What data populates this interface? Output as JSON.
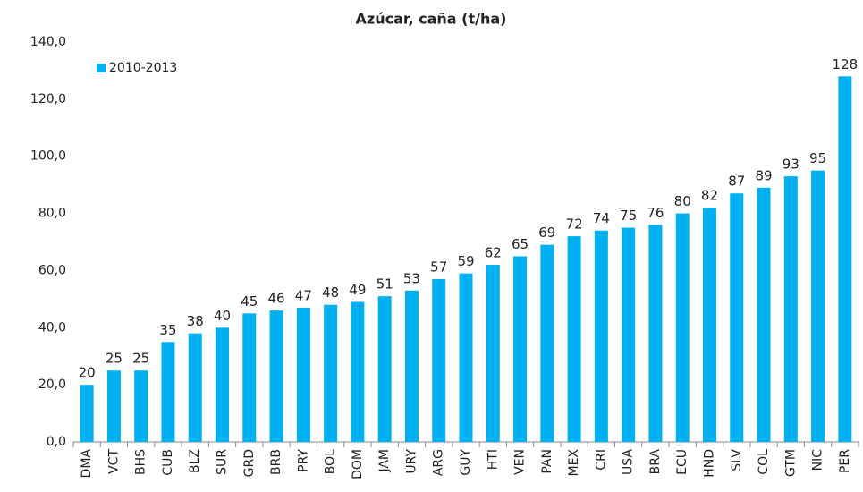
{
  "chart_data": {
    "type": "bar",
    "title": "Azúcar, caña (t/ha)",
    "categories": [
      "DMA",
      "VCT",
      "BHS",
      "CUB",
      "BLZ",
      "SUR",
      "GRD",
      "BRB",
      "PRY",
      "BOL",
      "DOM",
      "JAM",
      "URY",
      "ARG",
      "GUY",
      "HTI",
      "VEN",
      "PAN",
      "MEX",
      "CRI",
      "USA",
      "BRA",
      "ECU",
      "HND",
      "SLV",
      "COL",
      "GTM",
      "NIC",
      "PER"
    ],
    "series": [
      {
        "name": "2010-2013",
        "color": "#00b0f0",
        "values": [
          20,
          25,
          25,
          35,
          38,
          40,
          45,
          46,
          47,
          48,
          49,
          51,
          53,
          57,
          59,
          62,
          65,
          69,
          72,
          74,
          75,
          76,
          80,
          82,
          87,
          89,
          93,
          95,
          128
        ]
      }
    ],
    "ylim": [
      0,
      140
    ],
    "yticks": [
      {
        "value": 0,
        "label": "0,0"
      },
      {
        "value": 20,
        "label": "20,0"
      },
      {
        "value": 40,
        "label": "40,0"
      },
      {
        "value": 60,
        "label": "60,0"
      },
      {
        "value": 80,
        "label": "80,0"
      },
      {
        "value": 100,
        "label": "100,0"
      },
      {
        "value": 120,
        "label": "120,0"
      },
      {
        "value": 140,
        "label": "140,0"
      }
    ],
    "legend": "top-left",
    "grid": false
  }
}
